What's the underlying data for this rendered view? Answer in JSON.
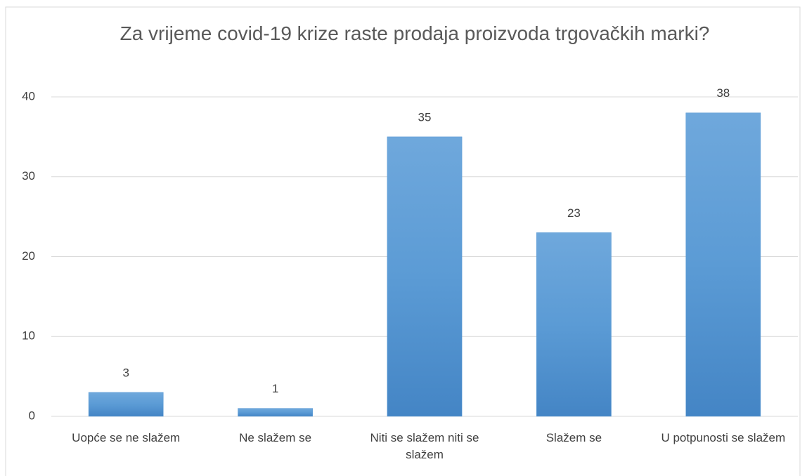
{
  "chart_data": {
    "type": "bar",
    "title": "Za vrijeme covid-19 krize raste prodaja proizvoda trgovačkih marki?",
    "categories": [
      "Uopće se ne slažem",
      "Ne slažem se",
      "Niti se slažem niti se slažem",
      "Slažem se",
      "U potpunosti se slažem"
    ],
    "values": [
      3,
      1,
      35,
      23,
      38
    ],
    "color": "#5b9bd5",
    "ylim": [
      0,
      40
    ],
    "yticks": [
      0,
      10,
      20,
      30,
      40
    ],
    "grid": true
  }
}
